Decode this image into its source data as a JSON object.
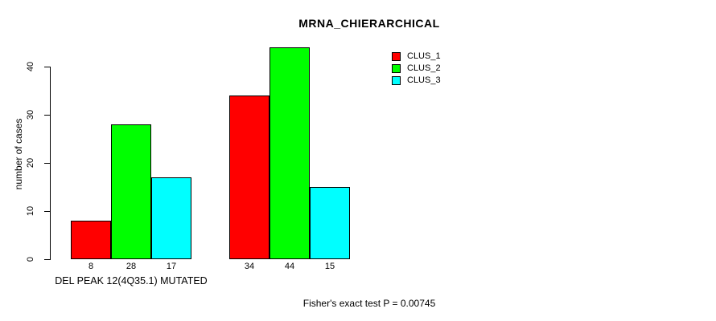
{
  "chart_data": {
    "type": "bar",
    "title": "MRNA_CHIERARCHICAL",
    "ylabel": "number of cases",
    "xlabel": "",
    "ylim": [
      0,
      40
    ],
    "yticks": [
      0,
      10,
      20,
      30,
      40
    ],
    "grid": false,
    "group_labels": [
      "DEL PEAK 12(4Q35.1) MUTATED",
      ""
    ],
    "series": [
      {
        "name": "CLUS_1",
        "color": "#ff0000",
        "values": [
          8,
          34
        ]
      },
      {
        "name": "CLUS_2",
        "color": "#00ff00",
        "values": [
          28,
          44
        ]
      },
      {
        "name": "CLUS_3",
        "color": "#00ffff",
        "values": [
          17,
          15
        ]
      }
    ],
    "bar_value_labels": [
      [
        8,
        28,
        17
      ],
      [
        34,
        44,
        15
      ]
    ],
    "legend": {
      "position": "top-right",
      "entries": [
        "CLUS_1",
        "CLUS_2",
        "CLUS_3"
      ]
    },
    "footnote": "Fisher's exact test P = 0.00745",
    "axis_color": "#000000",
    "text_color": "#000000",
    "background_color": "#ffffff"
  }
}
